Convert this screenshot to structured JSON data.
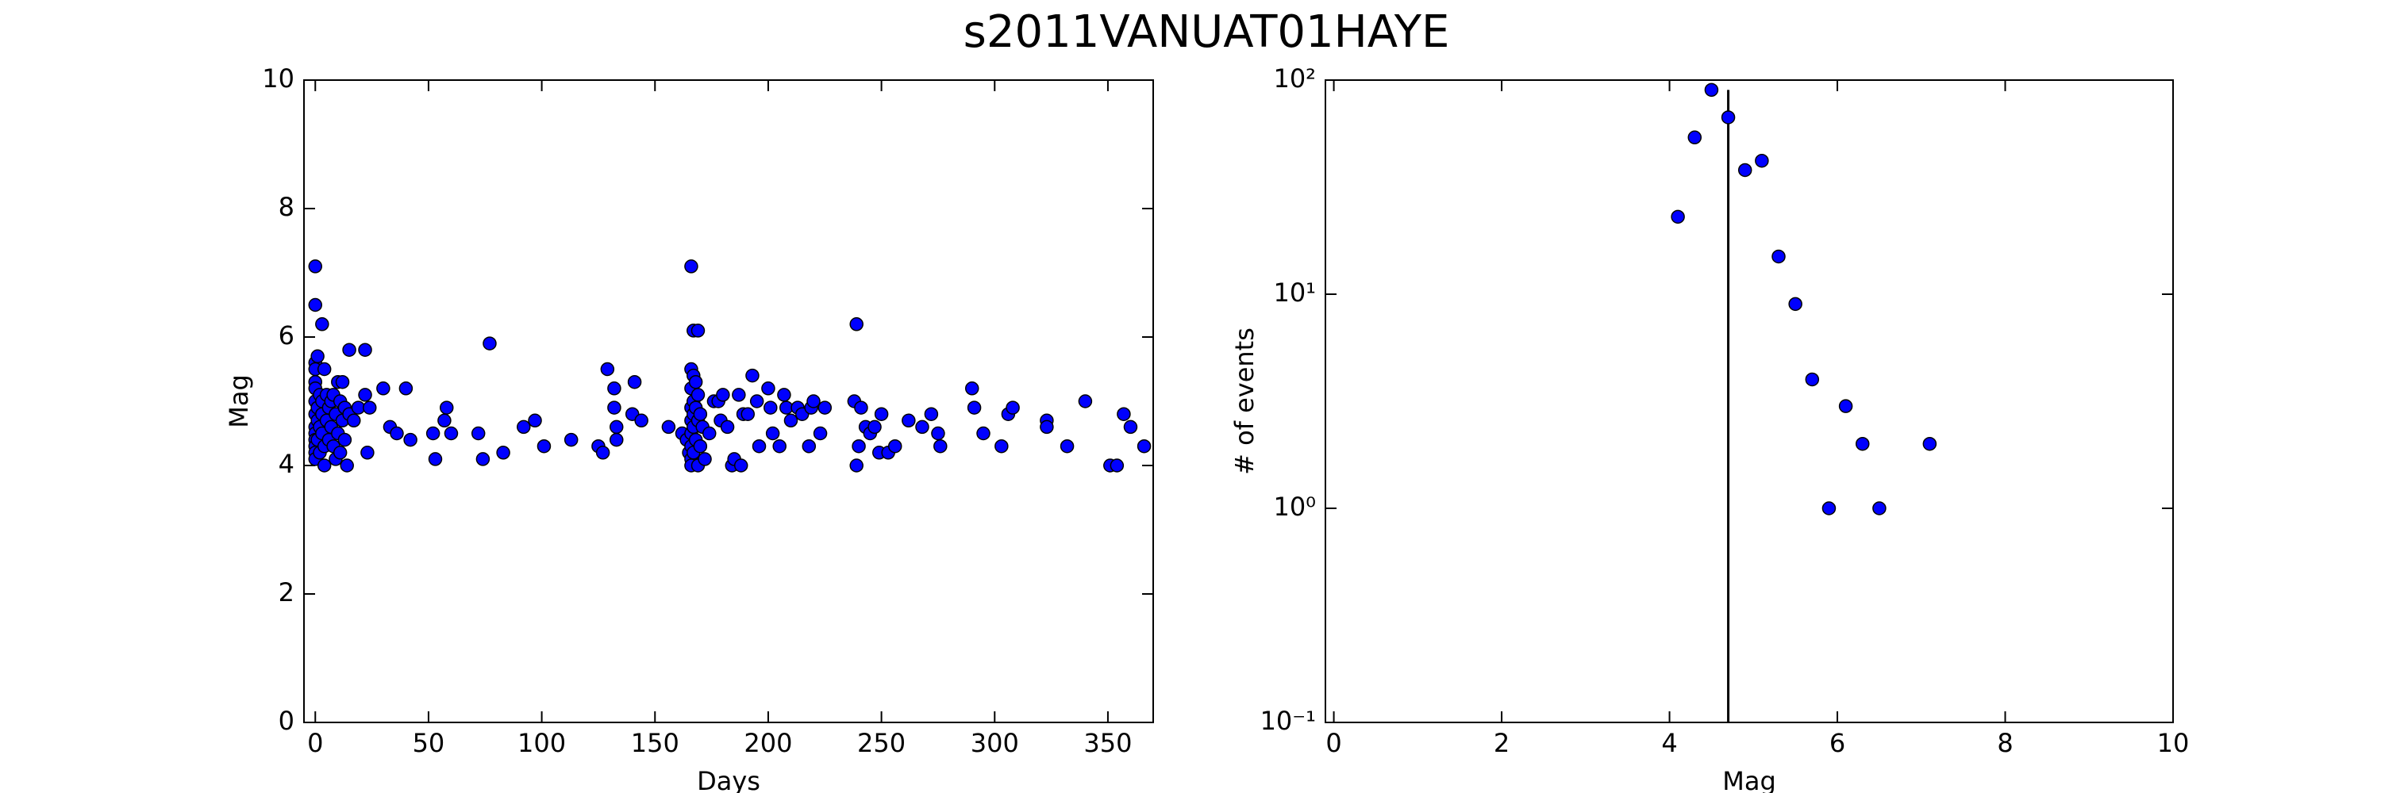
{
  "title": "s2011VANUAT01HAYE",
  "chart_data": [
    {
      "type": "scatter",
      "xlabel": "Days",
      "ylabel": "Mag",
      "color": "#0000ff",
      "x": [
        0,
        0,
        3,
        0,
        1,
        0,
        0,
        0,
        0,
        0,
        0,
        0,
        0,
        0,
        0,
        0,
        1,
        1,
        1,
        2,
        2,
        2,
        3,
        3,
        3,
        4,
        4,
        4,
        5,
        5,
        6,
        6,
        7,
        7,
        8,
        8,
        9,
        9,
        10,
        10,
        11,
        11,
        12,
        12,
        13,
        13,
        14,
        15,
        15,
        17,
        19,
        22,
        22,
        23,
        24,
        30,
        33,
        36,
        40,
        42,
        52,
        53,
        57,
        58,
        60,
        72,
        74,
        77,
        83,
        92,
        97,
        101,
        113,
        125,
        127,
        129,
        132,
        132,
        133,
        133,
        140,
        141,
        144,
        156,
        162,
        164,
        165,
        166,
        166,
        166,
        166,
        166,
        166,
        166,
        166,
        166,
        167,
        167,
        167,
        167,
        167,
        167,
        168,
        168,
        168,
        169,
        169,
        169,
        169,
        170,
        170,
        171,
        172,
        174,
        176,
        178,
        179,
        180,
        182,
        184,
        185,
        187,
        188,
        189,
        191,
        193,
        195,
        196,
        200,
        201,
        202,
        205,
        207,
        208,
        210,
        213,
        215,
        218,
        219,
        220,
        223,
        225,
        238,
        239,
        239,
        240,
        241,
        243,
        245,
        247,
        249,
        250,
        253,
        256,
        262,
        268,
        272,
        275,
        276,
        290,
        291,
        295,
        303,
        306,
        308,
        323,
        323,
        332,
        340,
        351,
        354,
        357,
        360,
        366
      ],
      "values": [
        7.1,
        6.5,
        6.2,
        5.6,
        5.7,
        5.5,
        5.3,
        5.2,
        5.0,
        4.8,
        4.6,
        4.5,
        4.4,
        4.3,
        4.2,
        4.1,
        4.9,
        4.7,
        4.4,
        5.1,
        4.6,
        4.2,
        5.0,
        4.8,
        4.5,
        5.5,
        4.3,
        4.0,
        5.1,
        4.7,
        4.9,
        4.4,
        5.0,
        4.6,
        5.1,
        4.3,
        4.8,
        4.1,
        5.3,
        4.5,
        5.0,
        4.2,
        5.3,
        4.7,
        4.9,
        4.4,
        4.0,
        5.8,
        4.8,
        4.7,
        4.9,
        5.8,
        5.1,
        4.2,
        4.9,
        5.2,
        4.6,
        4.5,
        5.2,
        4.4,
        4.5,
        4.1,
        4.7,
        4.9,
        4.5,
        4.5,
        4.1,
        5.9,
        4.2,
        4.6,
        4.7,
        4.3,
        4.4,
        4.3,
        4.2,
        5.5,
        5.2,
        4.9,
        4.6,
        4.4,
        4.8,
        5.3,
        4.7,
        4.6,
        4.5,
        4.4,
        4.2,
        7.1,
        5.5,
        5.2,
        4.9,
        4.7,
        4.5,
        4.3,
        4.1,
        4.0,
        6.1,
        5.4,
        5.0,
        4.8,
        4.6,
        4.2,
        5.3,
        4.9,
        4.4,
        6.1,
        5.1,
        4.7,
        4.0,
        4.8,
        4.3,
        4.6,
        4.1,
        4.5,
        5.0,
        5.0,
        4.7,
        5.1,
        4.6,
        4.0,
        4.1,
        5.1,
        4.0,
        4.8,
        4.8,
        5.4,
        5.0,
        4.3,
        5.2,
        4.9,
        4.5,
        4.3,
        5.1,
        4.9,
        4.7,
        4.9,
        4.8,
        4.3,
        4.9,
        5.0,
        4.5,
        4.9,
        5.0,
        6.2,
        4.0,
        4.3,
        4.9,
        4.6,
        4.5,
        4.6,
        4.2,
        4.8,
        4.2,
        4.3,
        4.7,
        4.6,
        4.8,
        4.5,
        4.3,
        5.2,
        4.9,
        4.5,
        4.3,
        4.8,
        4.9,
        4.7,
        4.6,
        4.3,
        5.0,
        4.0,
        4.0,
        4.8,
        4.6,
        4.3
      ],
      "xlim": [
        -5,
        370
      ],
      "xticks": [
        0,
        50,
        100,
        150,
        200,
        250,
        300,
        350
      ],
      "ylim": [
        0,
        10
      ],
      "yticks": [
        0,
        2,
        4,
        6,
        8,
        10
      ]
    },
    {
      "type": "scatter",
      "xlabel": "Mag",
      "ylabel": "# of events",
      "color": "#0000ff",
      "log_y": true,
      "x": [
        4.1,
        4.3,
        4.5,
        4.7,
        4.9,
        5.1,
        5.3,
        5.5,
        5.7,
        5.9,
        6.1,
        6.3,
        6.5,
        7.1
      ],
      "values": [
        23,
        54,
        90,
        67,
        38,
        42,
        15,
        9,
        4,
        1,
        3,
        2,
        1,
        2
      ],
      "vline": {
        "x": 4.7,
        "top": 90
      },
      "xlim": [
        -0.1,
        10
      ],
      "xticks": [
        0,
        2,
        4,
        6,
        8,
        10
      ],
      "ylim": [
        0.1,
        100
      ],
      "yticks": [
        {
          "value": 0.1,
          "label": "10⁻¹"
        },
        {
          "value": 1,
          "label": "10⁰"
        },
        {
          "value": 10,
          "label": "10¹"
        },
        {
          "value": 100,
          "label": "10²"
        }
      ]
    }
  ]
}
